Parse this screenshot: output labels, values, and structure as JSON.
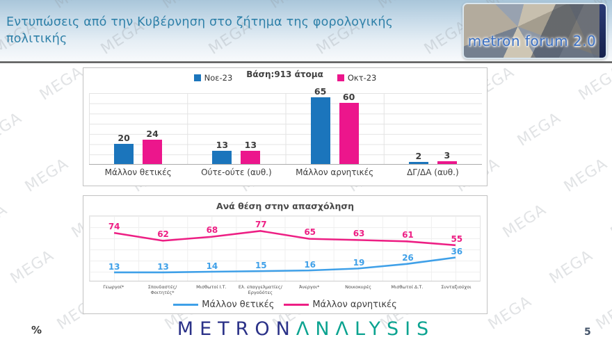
{
  "header": {
    "title": "Εντυπώσεις από την Κυβέρνηση στο ζήτημα της φορολογικής πολιτικής",
    "logo_text": "metron forum 2.0"
  },
  "watermark": {
    "text": "MEGA"
  },
  "footer": {
    "percent_label": "%",
    "logo_part1": "METRON",
    "logo_part2": "ΛNΛLYSIS",
    "page_number": "5"
  },
  "chart_data": [
    {
      "type": "bar",
      "title": "Βάση:913 άτομα",
      "categories": [
        "Μάλλον θετικές",
        "Ούτε-ούτε (αυθ.)",
        "Μάλλον αρνητικές",
        "ΔΓ/ΔΑ (αυθ.)"
      ],
      "series": [
        {
          "name": "Νοε-23",
          "color": "#1B75BC",
          "values": [
            20,
            13,
            65,
            2
          ]
        },
        {
          "name": "Οκτ-23",
          "color": "#EC168C",
          "values": [
            24,
            13,
            60,
            3
          ]
        }
      ],
      "ylim": [
        0,
        70
      ],
      "grid": true,
      "legend_position": "top"
    },
    {
      "type": "line",
      "title": "Ανά θέση στην απασχόληση",
      "categories": [
        "Γεωργοί*",
        "Σπουδαστές/Φοιτητές*",
        "Μισθωτοί Ι.Τ.",
        "Ελ. επαγγελματίες/ Εργοδότες",
        "Άνεργοι*",
        "Νοικοκυρές",
        "Μισθωτοί Δ.Τ.",
        "Συνταξιούχοι"
      ],
      "series": [
        {
          "name": "Μάλλον θετικές",
          "color": "#3FA0E8",
          "values": [
            13,
            13,
            14,
            15,
            16,
            19,
            26,
            36
          ]
        },
        {
          "name": "Μάλλον αρνητικές",
          "color": "#ED1F84",
          "values": [
            74,
            62,
            68,
            77,
            65,
            63,
            61,
            55
          ]
        }
      ],
      "ylim": [
        0,
        100
      ],
      "grid": true,
      "legend_position": "bottom"
    }
  ]
}
